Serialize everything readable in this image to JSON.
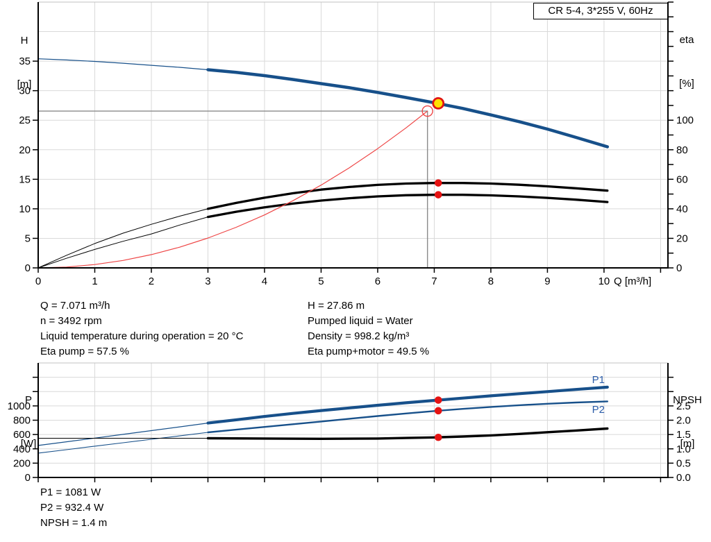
{
  "colors": {
    "blue": "#17508a",
    "black": "#000000",
    "red_curve": "#ee4545",
    "marker_red": "#e51313",
    "duty_fill": "#ffe100",
    "duty_stroke": "#e01414",
    "crosshair": "#8a8a8a",
    "grid": "#d9d9d9",
    "border_gray": "#c0c0c0",
    "label_blue": "#2b5ca8"
  },
  "axis_labels": {
    "h_top": [
      "H",
      "[m]"
    ],
    "eta": [
      "eta",
      "[%]"
    ],
    "p": [
      "P",
      "[W]"
    ],
    "npsh": [
      "NPSH",
      "[m]"
    ]
  },
  "info_blocks": {
    "top_left": [
      "Q = 7.071 m³/h",
      "n = 3492 rpm",
      "Liquid temperature during operation = 20 °C",
      "Eta pump = 57.5 %"
    ],
    "top_right": [
      "H = 27.86 m",
      "Pumped liquid = Water",
      "Density = 998.2 kg/m³",
      "Eta pump+motor = 49.5 %"
    ],
    "bottom": [
      "P1 = 1081 W",
      "P2 = 932.4 W",
      "NPSH = 1.4 m"
    ]
  },
  "chart_data": [
    {
      "type": "line",
      "title": "CR 5-4, 3*255 V, 60Hz",
      "x_axis": {
        "label": "Q [m³/h]",
        "min": 0,
        "max": 11.13,
        "grid_step": 1,
        "tick_step": 1,
        "tick_max": 11,
        "labels": [
          [
            0,
            "0"
          ],
          [
            1,
            "1"
          ],
          [
            2,
            "2"
          ],
          [
            3,
            "3"
          ],
          [
            4,
            "4"
          ],
          [
            5,
            "5"
          ],
          [
            6,
            "6"
          ],
          [
            7,
            "7"
          ],
          [
            8,
            "8"
          ],
          [
            9,
            "9"
          ],
          [
            10,
            "10"
          ]
        ]
      },
      "y_left": {
        "label": "H [m]",
        "min": 0,
        "max": 45,
        "grid_step": 5,
        "tick_step": 5,
        "tick_max": 35,
        "labels": [
          [
            0,
            "0"
          ],
          [
            5,
            "5"
          ],
          [
            10,
            "10"
          ],
          [
            15,
            "15"
          ],
          [
            20,
            "20"
          ],
          [
            25,
            "25"
          ],
          [
            30,
            "30"
          ],
          [
            35,
            "35"
          ]
        ]
      },
      "y_right": {
        "label": "eta [%]",
        "min": 0,
        "max": 180,
        "tick_step": 10,
        "tick_max": 180,
        "labels": [
          [
            0,
            "0"
          ],
          [
            20,
            "20"
          ],
          [
            40,
            "40"
          ],
          [
            60,
            "60"
          ],
          [
            80,
            "80"
          ],
          [
            100,
            "100"
          ]
        ]
      },
      "series": [
        {
          "name": "QH curve",
          "axis": "left",
          "color_key": "blue",
          "thin_width": 1.2,
          "thick_width": 4.5,
          "thick_from": 3,
          "points": [
            [
              0,
              35.4
            ],
            [
              0.5,
              35.2
            ],
            [
              1,
              34.95
            ],
            [
              1.5,
              34.65
            ],
            [
              2,
              34.3
            ],
            [
              2.5,
              33.95
            ],
            [
              3,
              33.55
            ],
            [
              3.5,
              33.1
            ],
            [
              4,
              32.55
            ],
            [
              4.5,
              31.9
            ],
            [
              5,
              31.2
            ],
            [
              5.5,
              30.5
            ],
            [
              6,
              29.7
            ],
            [
              6.5,
              28.85
            ],
            [
              7,
              27.95
            ],
            [
              7.5,
              27.0
            ],
            [
              8,
              25.9
            ],
            [
              8.5,
              24.75
            ],
            [
              9,
              23.5
            ],
            [
              9.5,
              22.1
            ],
            [
              10.06,
              20.5
            ]
          ]
        },
        {
          "name": "eta pump",
          "axis": "right",
          "color_key": "black",
          "thin_width": 1.0,
          "thick_width": 3.3,
          "thick_from": 3,
          "points": [
            [
              0,
              0
            ],
            [
              0.5,
              8.5
            ],
            [
              1,
              16.5
            ],
            [
              1.5,
              23.5
            ],
            [
              2,
              29.5
            ],
            [
              2.5,
              35
            ],
            [
              3,
              40
            ],
            [
              3.5,
              44
            ],
            [
              4,
              47.5
            ],
            [
              4.5,
              50.5
            ],
            [
              5,
              53
            ],
            [
              5.5,
              54.8
            ],
            [
              6,
              56.2
            ],
            [
              6.5,
              57.1
            ],
            [
              7,
              57.5
            ],
            [
              7.5,
              57.5
            ],
            [
              8,
              57.1
            ],
            [
              8.5,
              56.3
            ],
            [
              9,
              55.2
            ],
            [
              9.5,
              53.9
            ],
            [
              10.06,
              52.3
            ]
          ]
        },
        {
          "name": "eta pump+motor",
          "axis": "right",
          "color_key": "black",
          "thin_width": 1.0,
          "thick_width": 3.3,
          "thick_from": 3,
          "points": [
            [
              0,
              0
            ],
            [
              0.5,
              6.5
            ],
            [
              1,
              12.5
            ],
            [
              1.5,
              18
            ],
            [
              2,
              23
            ],
            [
              2.5,
              29
            ],
            [
              3,
              34.5
            ],
            [
              3.5,
              38
            ],
            [
              4,
              41
            ],
            [
              4.5,
              43.5
            ],
            [
              5,
              45.6
            ],
            [
              5.5,
              47.2
            ],
            [
              6,
              48.4
            ],
            [
              6.5,
              49.2
            ],
            [
              7,
              49.5
            ],
            [
              7.5,
              49.5
            ],
            [
              8,
              49.1
            ],
            [
              8.5,
              48.4
            ],
            [
              9,
              47.4
            ],
            [
              9.5,
              46.2
            ],
            [
              10.06,
              44.6
            ]
          ]
        },
        {
          "name": "system curve",
          "axis": "left",
          "color_key": "red_curve",
          "thin_width": 1.2,
          "thick_width": 1.2,
          "thick_from": null,
          "points": [
            [
              0,
              0
            ],
            [
              0.5,
              0.14
            ],
            [
              1,
              0.56
            ],
            [
              1.5,
              1.26
            ],
            [
              2,
              2.24
            ],
            [
              2.5,
              3.5
            ],
            [
              3,
              5.05
            ],
            [
              3.5,
              6.87
            ],
            [
              4,
              8.97
            ],
            [
              4.5,
              11.36
            ],
            [
              5,
              14.02
            ],
            [
              5.5,
              16.96
            ],
            [
              6,
              20.19
            ],
            [
              6.5,
              23.7
            ],
            [
              6.88,
              26.55
            ]
          ]
        }
      ],
      "crosshair": {
        "q": 6.88,
        "h": 26.55
      },
      "markers": [
        {
          "kind": "open-circle",
          "axis": "left",
          "q": 6.88,
          "v": 26.55
        },
        {
          "kind": "duty-point",
          "axis": "left",
          "q": 7.071,
          "v": 27.86
        },
        {
          "kind": "dot",
          "axis": "right",
          "q": 7.071,
          "v": 57.5
        },
        {
          "kind": "dot",
          "axis": "right",
          "q": 7.071,
          "v": 49.5
        }
      ]
    },
    {
      "type": "line",
      "x_axis": {
        "label": "",
        "min": 0,
        "max": 11.13,
        "grid_step": 1,
        "tick_step": 1,
        "tick_max": 11,
        "labels": []
      },
      "y_left": {
        "label": "P [W]",
        "min": 0,
        "max": 1600,
        "grid_step": 200,
        "tick_step": 200,
        "tick_max": 1400,
        "labels": [
          [
            0,
            "0"
          ],
          [
            200,
            "200"
          ],
          [
            400,
            "400"
          ],
          [
            600,
            "600"
          ],
          [
            800,
            "800"
          ],
          [
            1000,
            "1000"
          ]
        ]
      },
      "y_right": {
        "label": "NPSH [m]",
        "min": 0,
        "max": 4,
        "tick_step": 0.5,
        "tick_max": 3.5,
        "labels": [
          [
            0,
            "0.0"
          ],
          [
            0.5,
            "0.5"
          ],
          [
            1,
            "1.0"
          ],
          [
            1.5,
            "1.5"
          ],
          [
            2,
            "2.0"
          ],
          [
            2.5,
            "2.5"
          ]
        ]
      },
      "series": [
        {
          "name": "P1",
          "axis": "left",
          "color_key": "blue",
          "thin_width": 1.2,
          "thick_width": 4.2,
          "thick_from": 3,
          "points": [
            [
              0,
              447
            ],
            [
              0.5,
              498
            ],
            [
              1,
              550
            ],
            [
              1.5,
              602
            ],
            [
              2,
              655
            ],
            [
              2.5,
              707
            ],
            [
              3,
              760
            ],
            [
              3.5,
              806
            ],
            [
              4,
              852
            ],
            [
              4.5,
              895
            ],
            [
              5,
              935
            ],
            [
              5.5,
              972
            ],
            [
              6,
              1008
            ],
            [
              6.5,
              1043
            ],
            [
              7,
              1076
            ],
            [
              7.5,
              1108
            ],
            [
              8,
              1140
            ],
            [
              8.5,
              1170
            ],
            [
              9,
              1200
            ],
            [
              9.5,
              1230
            ],
            [
              10.06,
              1262
            ]
          ]
        },
        {
          "name": "P2",
          "axis": "left",
          "color_key": "blue",
          "thin_width": 1.1,
          "thick_width": 2.4,
          "thick_from": 3,
          "points": [
            [
              0,
              340
            ],
            [
              0.5,
              388
            ],
            [
              1,
              437
            ],
            [
              1.5,
              485
            ],
            [
              2,
              533
            ],
            [
              2.5,
              581
            ],
            [
              3,
              630
            ],
            [
              3.5,
              668
            ],
            [
              4,
              706
            ],
            [
              4.5,
              744
            ],
            [
              5,
              782
            ],
            [
              5.5,
              820
            ],
            [
              6,
              858
            ],
            [
              6.5,
              894
            ],
            [
              7,
              928
            ],
            [
              7.5,
              958
            ],
            [
              8,
              985
            ],
            [
              8.5,
              1009
            ],
            [
              9,
              1030
            ],
            [
              9.5,
              1047
            ],
            [
              10.06,
              1063
            ]
          ]
        },
        {
          "name": "NPSH",
          "axis": "right",
          "color_key": "black",
          "thin_width": 1.1,
          "thick_width": 3.4,
          "thick_from": 3,
          "points": [
            [
              0,
              1.37
            ],
            [
              1,
              1.37
            ],
            [
              2,
              1.37
            ],
            [
              3,
              1.37
            ],
            [
              4,
              1.36
            ],
            [
              5,
              1.35
            ],
            [
              6,
              1.36
            ],
            [
              6.5,
              1.38
            ],
            [
              7,
              1.4
            ],
            [
              7.5,
              1.43
            ],
            [
              8,
              1.47
            ],
            [
              8.5,
              1.52
            ],
            [
              9,
              1.58
            ],
            [
              9.5,
              1.64
            ],
            [
              10.06,
              1.71
            ]
          ]
        }
      ],
      "series_labels": [
        {
          "text": "P1",
          "axis": "left",
          "q": 9.9,
          "v": 1365
        },
        {
          "text": "P2",
          "axis": "left",
          "q": 9.9,
          "v": 950
        }
      ],
      "markers": [
        {
          "kind": "dot",
          "axis": "left",
          "q": 7.071,
          "v": 1081
        },
        {
          "kind": "dot",
          "axis": "left",
          "q": 7.071,
          "v": 932.4
        },
        {
          "kind": "dot",
          "axis": "right",
          "q": 7.071,
          "v": 1.4
        }
      ]
    }
  ]
}
